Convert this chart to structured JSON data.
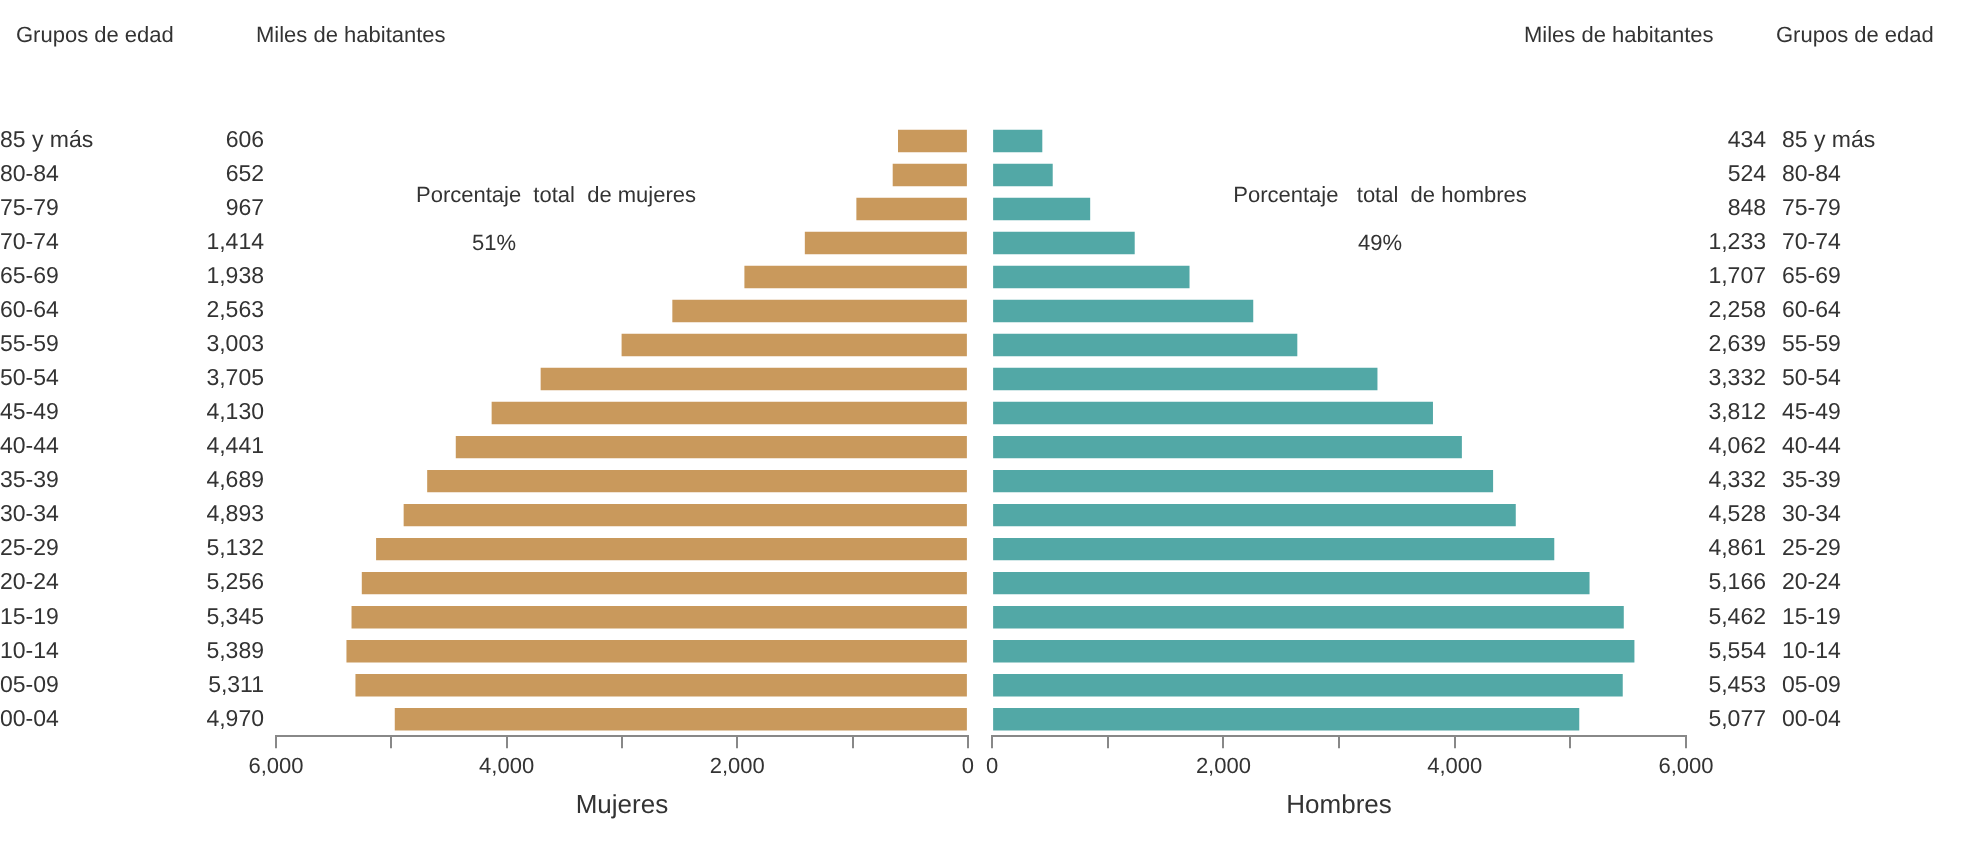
{
  "chart_data": [
    {
      "type": "bar",
      "orientation": "horizontal",
      "xlabel": "Mujeres",
      "categories": [
        "85 y más",
        "80-84",
        "75-79",
        "70-74",
        "65-69",
        "60-64",
        "55-59",
        "50-54",
        "45-49",
        "40-44",
        "35-39",
        "30-34",
        "25-29",
        "20-24",
        "15-19",
        "10-14",
        "05-09",
        "00-04"
      ],
      "series": [
        {
          "color": "#c9995c",
          "values": [
            606,
            652,
            967,
            1414,
            1938,
            2563,
            3003,
            3705,
            4130,
            4441,
            4689,
            4893,
            5132,
            5256,
            5345,
            5389,
            5311,
            4970
          ],
          "value_labels": [
            "606",
            "652",
            "967",
            "1,414",
            "1,938",
            "2,563",
            "3,003",
            "3,705",
            "4,130",
            "4,441",
            "4,689",
            "4,893",
            "5,132",
            "5,256",
            "5,345",
            "5,389",
            "5,311",
            "4,970"
          ]
        }
      ],
      "xlim": [
        6000,
        0
      ],
      "xticks": [
        {
          "value": 6000,
          "label": "6,000"
        },
        {
          "value": 5000,
          "label": null
        },
        {
          "value": 4000,
          "label": "4,000"
        },
        {
          "value": 3000,
          "label": null
        },
        {
          "value": 2000,
          "label": "2,000"
        },
        {
          "value": 1000,
          "label": null
        },
        0
      ],
      "annotations": [
        "Grupos de edad",
        "Miles de habitantes",
        "Porcentaje  total  de mujeres",
        "51%"
      ]
    },
    {
      "type": "bar",
      "orientation": "horizontal",
      "xlabel": "Hombres",
      "categories": [
        "85 y más",
        "80-84",
        "75-79",
        "70-74",
        "65-69",
        "60-64",
        "55-59",
        "50-54",
        "45-49",
        "40-44",
        "35-39",
        "30-34",
        "25-29",
        "20-24",
        "15-19",
        "10-14",
        "05-09",
        "00-04"
      ],
      "series": [
        {
          "color": "#52a8a6",
          "values": [
            434,
            524,
            848,
            1233,
            1707,
            2258,
            2639,
            3332,
            3812,
            4062,
            4332,
            4528,
            4861,
            5166,
            5462,
            5554,
            5453,
            5077
          ],
          "value_labels": [
            "434",
            "524",
            "848",
            "1,233",
            "1,707",
            "2,258",
            "2,639",
            "3,332",
            "3,812",
            "4,062",
            "4,332",
            "4,528",
            "4,861",
            "5,166",
            "5,462",
            "5,554",
            "5,453",
            "5,077"
          ]
        }
      ],
      "xlim": [
        0,
        6000
      ],
      "xticks": [
        0,
        {
          "value": 1000,
          "label": null
        },
        {
          "value": 2000,
          "label": "2,000"
        },
        {
          "value": 3000,
          "label": null
        },
        {
          "value": 4000,
          "label": "4,000"
        },
        {
          "value": 5000,
          "label": null
        },
        {
          "value": 6000,
          "label": "6,000"
        }
      ],
      "annotations": [
        "Miles de habitantes",
        "Grupos de edad",
        "Porcentaje   total  de hombres",
        "49%"
      ]
    }
  ]
}
